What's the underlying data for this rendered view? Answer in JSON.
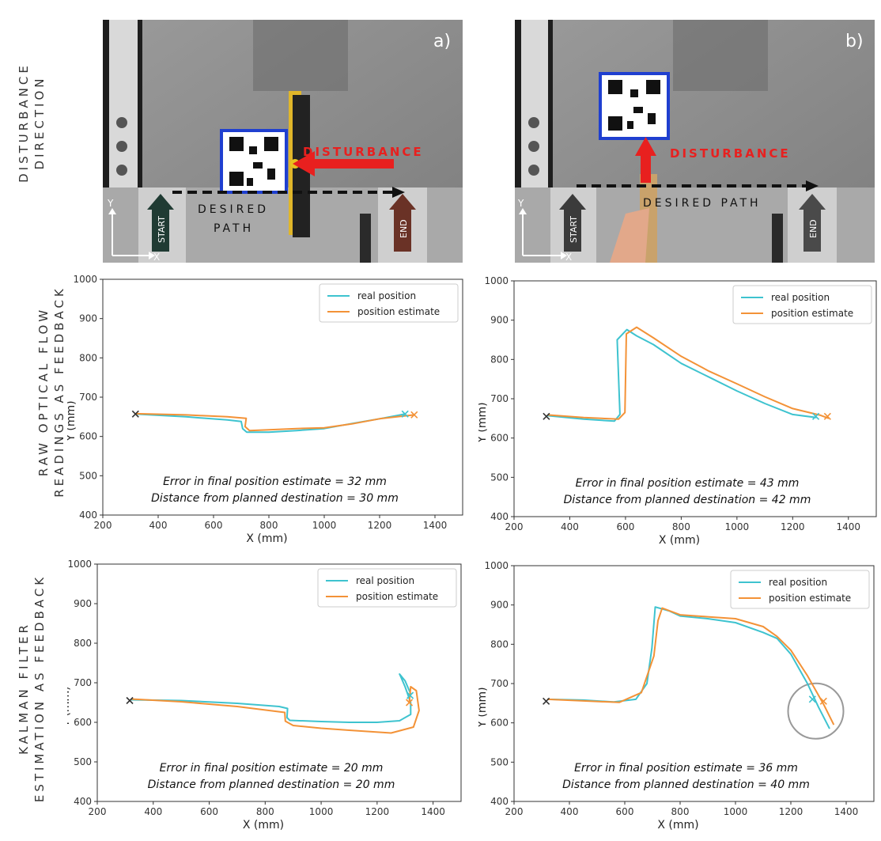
{
  "row_labels": {
    "row1": [
      "DISTURBANCE",
      "DIRECTION"
    ],
    "row2": [
      "RAW OPTICAL FLOW",
      "READINGS AS FEEDBACK"
    ],
    "row3": [
      "KALMAN FILTER",
      "ESTIMATION AS FEEDBACK"
    ]
  },
  "photos": [
    {
      "panel_label": "a)",
      "disturbance_label": "DISTURBANCE",
      "path_label_line1": "DESIRED",
      "path_label_line2": "PATH",
      "start_label": "START",
      "end_label": "END",
      "axis_y": "Y",
      "axis_x": "X",
      "disturbance_direction": "left"
    },
    {
      "panel_label": "b)",
      "disturbance_label": "DISTURBANCE",
      "path_label_line1": "DESIRED PATH",
      "path_label_line2": "",
      "start_label": "START",
      "end_label": "END",
      "axis_y": "Y",
      "axis_x": "X",
      "disturbance_direction": "up"
    }
  ],
  "colors": {
    "real": "#3ec3cf",
    "estimate": "#f39237",
    "arrow_red": "#e8201f",
    "qr_border": "#1f3fd0"
  },
  "chart_data": [
    {
      "type": "line",
      "xlabel": "X (mm)",
      "ylabel": "Y (mm)",
      "xlim": [
        200,
        1500
      ],
      "ylim": [
        400,
        1000
      ],
      "xticks": [
        200,
        400,
        600,
        800,
        1000,
        1200,
        1400
      ],
      "yticks": [
        400,
        500,
        600,
        700,
        800,
        900,
        1000
      ],
      "legend_position": "top-right",
      "series": [
        {
          "name": "real position",
          "color": "#3ec3cf",
          "x": [
            320,
            500,
            650,
            700,
            705,
            720,
            800,
            900,
            1000,
            1100,
            1200,
            1290
          ],
          "y": [
            657,
            650,
            642,
            638,
            620,
            611,
            611,
            615,
            620,
            633,
            645,
            657
          ]
        },
        {
          "name": "position estimate",
          "color": "#f39237",
          "x": [
            320,
            500,
            650,
            718,
            714,
            730,
            800,
            900,
            1000,
            1100,
            1200,
            1325
          ],
          "y": [
            658,
            655,
            650,
            646,
            625,
            615,
            617,
            620,
            622,
            632,
            645,
            655
          ]
        }
      ],
      "markers": [
        {
          "x": 318,
          "y": 657,
          "color": "#333333"
        },
        {
          "x": 1292,
          "y": 657,
          "color": "#3ec3cf"
        },
        {
          "x": 1325,
          "y": 655,
          "color": "#f39237"
        }
      ],
      "annotations": [
        "Error in final position estimate = 32 mm",
        "Distance from planned destination = 30 mm"
      ]
    },
    {
      "type": "line",
      "xlabel": "X (mm)",
      "ylabel": "Y (mm)",
      "xlim": [
        200,
        1500
      ],
      "ylim": [
        400,
        1000
      ],
      "xticks": [
        200,
        400,
        600,
        800,
        1000,
        1200,
        1400
      ],
      "yticks": [
        400,
        500,
        600,
        700,
        800,
        900,
        1000
      ],
      "legend_position": "top-right",
      "series": [
        {
          "name": "real position",
          "color": "#3ec3cf",
          "x": [
            320,
            450,
            560,
            580,
            570,
            605,
            640,
            700,
            800,
            900,
            1000,
            1100,
            1200,
            1285
          ],
          "y": [
            657,
            648,
            643,
            660,
            850,
            876,
            860,
            838,
            790,
            755,
            720,
            688,
            660,
            652
          ]
        },
        {
          "name": "position estimate",
          "color": "#f39237",
          "x": [
            320,
            450,
            575,
            598,
            603,
            640,
            700,
            800,
            900,
            1000,
            1100,
            1200,
            1300,
            1330
          ],
          "y": [
            659,
            652,
            648,
            665,
            865,
            882,
            855,
            808,
            770,
            738,
            705,
            675,
            658,
            650
          ]
        }
      ],
      "markers": [
        {
          "x": 316,
          "y": 655,
          "color": "#333333"
        },
        {
          "x": 1283,
          "y": 655,
          "color": "#3ec3cf"
        },
        {
          "x": 1325,
          "y": 655,
          "color": "#f39237"
        }
      ],
      "annotations": [
        "Error in final position estimate = 43 mm",
        "Distance from planned destination = 42 mm"
      ]
    },
    {
      "type": "line",
      "xlabel": "X (mm)",
      "ylabel": "Y (mm)",
      "xlim": [
        200,
        1500
      ],
      "ylim": [
        400,
        1000
      ],
      "xticks": [
        200,
        400,
        600,
        800,
        1000,
        1200,
        1400
      ],
      "yticks": [
        400,
        500,
        600,
        700,
        800,
        900,
        1000
      ],
      "legend_position": "top-right",
      "series": [
        {
          "name": "real position",
          "color": "#3ec3cf",
          "x": [
            320,
            500,
            700,
            850,
            880,
            878,
            888,
            1000,
            1100,
            1200,
            1280,
            1320,
            1320,
            1300,
            1283,
            1280,
            1300,
            1320
          ],
          "y": [
            657,
            655,
            648,
            640,
            635,
            612,
            605,
            602,
            600,
            600,
            604,
            620,
            650,
            690,
            718,
            722,
            705,
            672
          ]
        },
        {
          "name": "position estimate",
          "color": "#f39237",
          "x": [
            320,
            500,
            700,
            870,
            872,
            900,
            1000,
            1100,
            1250,
            1330,
            1350,
            1340,
            1320,
            1315
          ],
          "y": [
            659,
            652,
            640,
            625,
            603,
            592,
            585,
            580,
            573,
            588,
            630,
            680,
            690,
            650
          ]
        }
      ],
      "markers": [
        {
          "x": 316,
          "y": 655,
          "color": "#333333"
        },
        {
          "x": 1318,
          "y": 668,
          "color": "#3ec3cf"
        },
        {
          "x": 1315,
          "y": 650,
          "color": "#f39237"
        }
      ],
      "annotations": [
        "Error in final position estimate = 20 mm",
        "Distance from planned destination = 20 mm"
      ]
    },
    {
      "type": "line",
      "xlabel": "X (mm)",
      "ylabel": "Y (mm)",
      "xlim": [
        200,
        1500
      ],
      "ylim": [
        400,
        1000
      ],
      "xticks": [
        200,
        400,
        600,
        800,
        1000,
        1200,
        1400
      ],
      "yticks": [
        400,
        500,
        600,
        700,
        800,
        900,
        1000
      ],
      "legend_position": "top-right",
      "series": [
        {
          "name": "real position",
          "color": "#3ec3cf",
          "x": [
            320,
            450,
            560,
            640,
            680,
            698,
            710,
            760,
            800,
            900,
            1000,
            1100,
            1150,
            1200,
            1260,
            1300,
            1340
          ],
          "y": [
            660,
            658,
            653,
            660,
            700,
            790,
            895,
            885,
            872,
            865,
            855,
            830,
            815,
            775,
            700,
            640,
            585
          ]
        },
        {
          "name": "position estimate",
          "color": "#f39237",
          "x": [
            320,
            450,
            580,
            660,
            705,
            720,
            735,
            800,
            900,
            1000,
            1100,
            1150,
            1200,
            1260,
            1300,
            1320,
            1355
          ],
          "y": [
            660,
            656,
            652,
            677,
            770,
            860,
            892,
            875,
            870,
            865,
            845,
            820,
            785,
            720,
            670,
            645,
            595
          ]
        }
      ],
      "markers": [
        {
          "x": 316,
          "y": 655,
          "color": "#333333"
        },
        {
          "x": 1278,
          "y": 660,
          "color": "#3ec3cf"
        },
        {
          "x": 1318,
          "y": 655,
          "color": "#f39237"
        }
      ],
      "highlight_circle": {
        "x": 1290,
        "y": 630,
        "r": 100
      },
      "annotations": [
        "Error in final position estimate = 36 mm",
        "Distance from planned destination = 40 mm"
      ]
    }
  ]
}
